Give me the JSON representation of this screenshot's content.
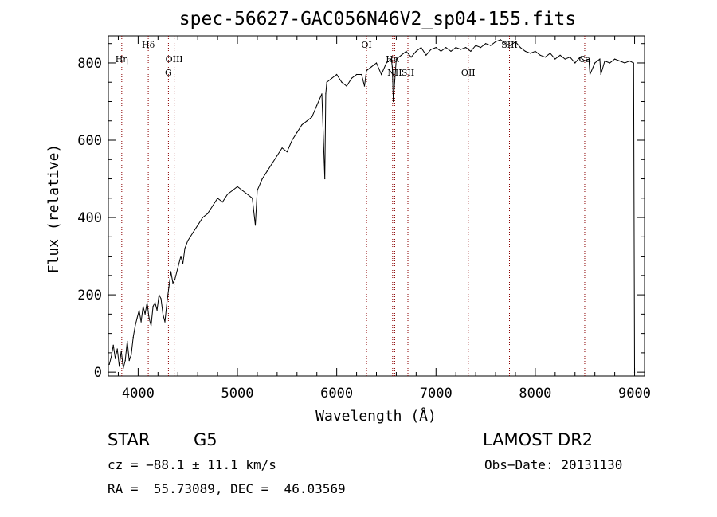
{
  "chart_data": {
    "type": "line",
    "title": "spec-56627-GAC056N46V2_sp04-155.fits",
    "xlabel": "Wavelength (Å)",
    "ylabel": "Flux (relative)",
    "xlim": [
      3700,
      9100
    ],
    "ylim": [
      -10,
      870
    ],
    "xticks": [
      4000,
      5000,
      6000,
      7000,
      8000,
      9000
    ],
    "yticks": [
      0,
      200,
      400,
      600,
      800
    ],
    "grid": false,
    "legend": "none",
    "colors": {
      "spectrum": "#000000",
      "line_marker": "#8b0000"
    },
    "series": [
      {
        "x": [
          3710,
          3730,
          3750,
          3770,
          3790,
          3810,
          3830,
          3850,
          3870,
          3890,
          3910,
          3930,
          3950,
          3970,
          3990,
          4010,
          4030,
          4050,
          4070,
          4090,
          4110,
          4130,
          4150,
          4170,
          4190,
          4210,
          4230,
          4250,
          4270,
          4290,
          4310,
          4330,
          4350,
          4370,
          4390,
          4410,
          4430,
          4450,
          4470,
          4500,
          4550,
          4600,
          4650,
          4700,
          4750,
          4800,
          4850,
          4900,
          4950,
          5000,
          5050,
          5100,
          5150,
          5180,
          5200,
          5250,
          5300,
          5350,
          5400,
          5450,
          5500,
          5550,
          5600,
          5650,
          5700,
          5750,
          5800,
          5850,
          5880,
          5890,
          5900,
          5950,
          6000,
          6050,
          6100,
          6150,
          6200,
          6250,
          6280,
          6300,
          6350,
          6400,
          6450,
          6500,
          6550,
          6560,
          6570,
          6600,
          6650,
          6700,
          6750,
          6800,
          6850,
          6900,
          6950,
          7000,
          7050,
          7100,
          7150,
          7200,
          7250,
          7300,
          7350,
          7400,
          7450,
          7500,
          7550,
          7600,
          7650,
          7700,
          7750,
          7800,
          7850,
          7900,
          7950,
          8000,
          8050,
          8100,
          8150,
          8200,
          8250,
          8300,
          8350,
          8400,
          8450,
          8500,
          8540,
          8550,
          8600,
          8650,
          8660,
          8700,
          8750,
          8800,
          8850,
          8900,
          8950,
          8990,
          9000
        ],
        "y": [
          20,
          40,
          70,
          35,
          60,
          15,
          55,
          10,
          30,
          80,
          30,
          45,
          90,
          120,
          140,
          160,
          130,
          170,
          150,
          180,
          140,
          120,
          170,
          180,
          160,
          200,
          190,
          150,
          130,
          180,
          220,
          260,
          230,
          240,
          260,
          280,
          300,
          280,
          320,
          340,
          360,
          380,
          400,
          410,
          430,
          450,
          440,
          460,
          470,
          480,
          470,
          460,
          450,
          380,
          470,
          500,
          520,
          540,
          560,
          580,
          570,
          600,
          620,
          640,
          650,
          660,
          690,
          720,
          500,
          720,
          750,
          760,
          770,
          750,
          740,
          760,
          770,
          770,
          740,
          780,
          790,
          800,
          770,
          800,
          810,
          790,
          700,
          810,
          820,
          830,
          815,
          830,
          840,
          820,
          835,
          840,
          830,
          840,
          830,
          840,
          835,
          840,
          830,
          845,
          840,
          850,
          845,
          855,
          860,
          850,
          845,
          855,
          840,
          830,
          825,
          830,
          820,
          815,
          825,
          810,
          820,
          810,
          815,
          800,
          815,
          805,
          810,
          770,
          800,
          810,
          770,
          805,
          800,
          810,
          805,
          800,
          805,
          800,
          0
        ]
      }
    ],
    "line_labels": [
      {
        "name": "Hη",
        "wavelength": 3835,
        "row": 1
      },
      {
        "name": "Hδ",
        "wavelength": 4102,
        "row": 0
      },
      {
        "name": "OIII",
        "wavelength": 4363,
        "row": 1
      },
      {
        "name": "G",
        "wavelength": 4305,
        "row": 2
      },
      {
        "name": "OI",
        "wavelength": 6300,
        "row": 0
      },
      {
        "name": "NII",
        "wavelength": 6584,
        "row": 2
      },
      {
        "name": "SII",
        "wavelength": 6717,
        "row": 2
      },
      {
        "name": "Hα",
        "wavelength": 6563,
        "row": 1
      },
      {
        "name": "OII",
        "wavelength": 7325,
        "row": 2
      },
      {
        "name": "SIII",
        "wavelength": 7740,
        "row": 0
      },
      {
        "name": "Ca",
        "wavelength": 8498,
        "row": 1
      }
    ]
  },
  "info": {
    "object_class": "STAR",
    "subclass": "G5",
    "survey": "LAMOST DR2",
    "cz": "cz = −88.1 ± 11.1 km/s",
    "obs_date": "Obs−Date: 20131130",
    "coords": "RA =  55.73089, DEC =  46.03569"
  }
}
